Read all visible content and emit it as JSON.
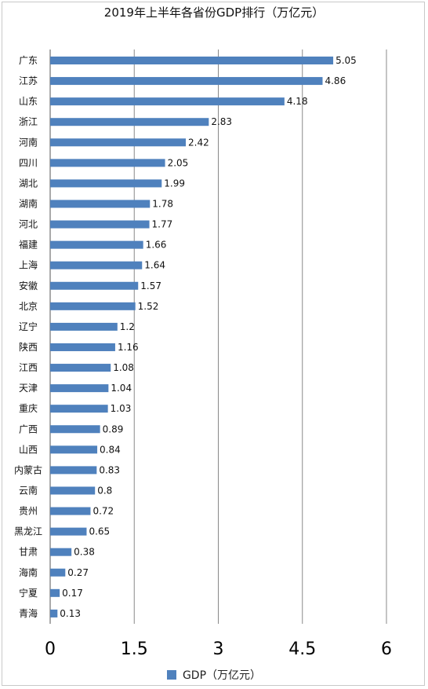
{
  "chart_data": {
    "type": "bar",
    "orientation": "horizontal",
    "title": "2019年上半年各省份GDP排行（万亿元）",
    "categories": [
      "广东",
      "江苏",
      "山东",
      "浙江",
      "河南",
      "四川",
      "湖北",
      "湖南",
      "河北",
      "福建",
      "上海",
      "安徽",
      "北京",
      "辽宁",
      "陕西",
      "江西",
      "天津",
      "重庆",
      "广西",
      "山西",
      "内蒙古",
      "云南",
      "贵州",
      "黑龙江",
      "甘肃",
      "海南",
      "宁夏",
      "青海"
    ],
    "value_labels": [
      "5.05",
      "4.86",
      "4.18",
      "2.83",
      "2.42",
      "2.05",
      "1.99",
      "1.78",
      "1.77",
      "1.66",
      "1.64",
      "1.57",
      "1.52",
      "1.2",
      "1.16",
      "1.08",
      "1.04",
      "1.03",
      "0.89",
      "0.84",
      "0.83",
      "0.8",
      "0.72",
      "0.65",
      "0.38",
      "0.27",
      "0.17",
      "0.13"
    ],
    "series": [
      {
        "name": "GDP（万亿元）",
        "color": "#4f81bd",
        "values": [
          5.05,
          4.86,
          4.18,
          2.83,
          2.42,
          2.05,
          1.99,
          1.78,
          1.77,
          1.66,
          1.64,
          1.57,
          1.52,
          1.2,
          1.16,
          1.08,
          1.04,
          1.03,
          0.89,
          0.84,
          0.83,
          0.8,
          0.72,
          0.65,
          0.38,
          0.27,
          0.17,
          0.13
        ]
      }
    ],
    "xlim": [
      0,
      6
    ],
    "xticks": [
      0,
      1.5,
      3,
      4.5,
      6
    ],
    "xtick_labels": [
      "0",
      "1.5",
      "3",
      "4.5",
      "6"
    ],
    "grid": "vertical",
    "legend": "bottom"
  }
}
